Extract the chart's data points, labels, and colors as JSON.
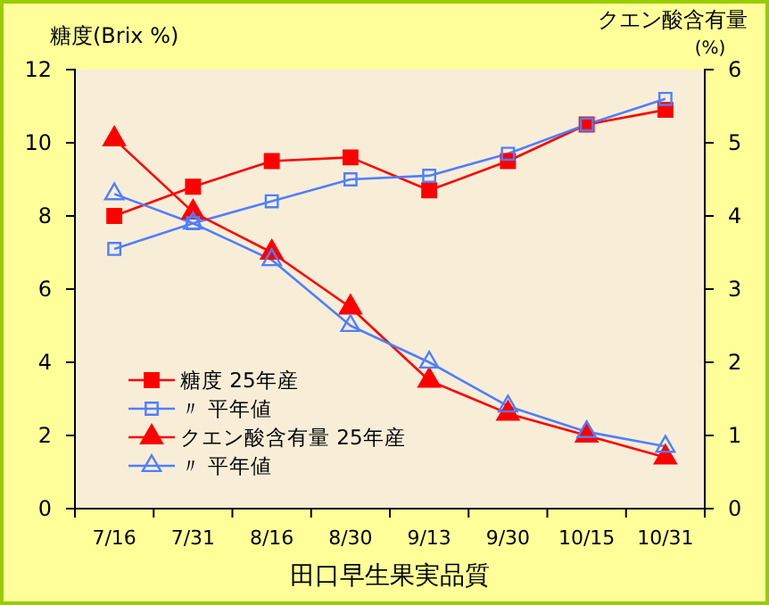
{
  "chart_data": {
    "type": "line",
    "xlabel": "田口早生果実品質",
    "ylabel": "糖度(Brix %)",
    "y2label": "クエン酸含有量\n(%)",
    "categories": [
      "7/16",
      "7/31",
      "8/16",
      "8/30",
      "9/13",
      "9/30",
      "10/15",
      "10/31"
    ],
    "ylim": [
      0,
      12
    ],
    "yticks": [
      0,
      2,
      4,
      6,
      8,
      10,
      12
    ],
    "y2lim": [
      0,
      6
    ],
    "y2ticks": [
      0,
      1,
      2,
      3,
      4,
      5,
      6
    ],
    "legend": "left",
    "grid": false,
    "series": [
      {
        "name": "糖度 25年産",
        "color": "#ff0000",
        "marker": "square",
        "values": [
          8.0,
          8.8,
          9.5,
          9.6,
          8.7,
          9.5,
          10.5,
          10.9
        ]
      },
      {
        "name": "〃 平年値",
        "color": "#4f7fff",
        "marker": "square-open",
        "values": [
          7.1,
          7.8,
          8.4,
          9.0,
          9.1,
          9.7,
          10.5,
          11.2
        ]
      },
      {
        "name": "クエン酸含有量 25年産",
        "color": "#ff0000",
        "marker": "triangle",
        "axis": "y2",
        "values": [
          5.05,
          4.05,
          3.5,
          2.75,
          1.75,
          1.3,
          1.0,
          0.7
        ]
      },
      {
        "name": "〃 平年値",
        "color": "#4f7fff",
        "marker": "triangle-open",
        "axis": "y2",
        "values": [
          4.3,
          3.9,
          3.4,
          2.5,
          2.0,
          1.4,
          1.05,
          0.85
        ]
      }
    ]
  }
}
